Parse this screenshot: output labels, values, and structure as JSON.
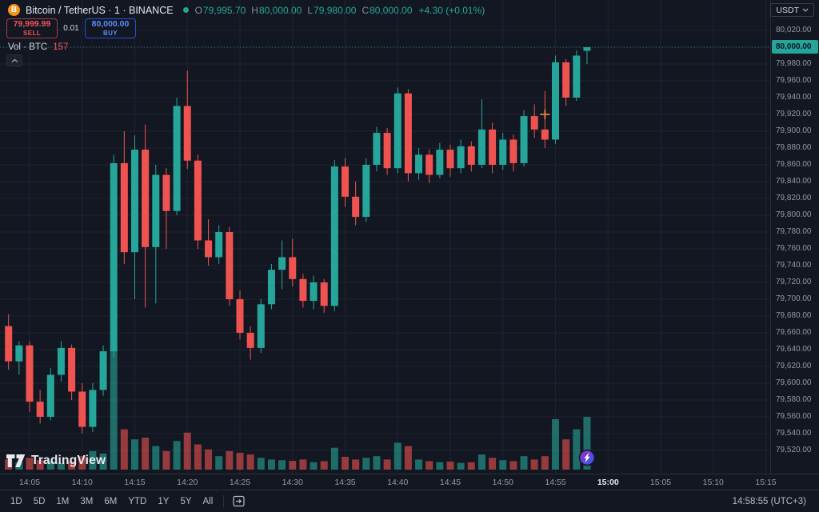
{
  "header": {
    "symbol": "Bitcoin / TetherUS · 1 · BINANCE",
    "ohlc": {
      "o_label": "O",
      "o": "79,995.70",
      "h_label": "H",
      "h": "80,000.00",
      "l_label": "L",
      "l": "79,980.00",
      "c_label": "C",
      "c": "80,000.00",
      "change": "+4.30 (+0.01%)"
    },
    "currency": "USDT"
  },
  "trade": {
    "sell_price": "79,999.99",
    "sell_label": "SELL",
    "spread": "0.01",
    "buy_price": "80,000.00",
    "buy_label": "BUY"
  },
  "indicator": {
    "label": "Vol · BTC",
    "value": "157"
  },
  "watermark": "TradingView",
  "price_axis": {
    "highlight": "80,000.00",
    "labels": [
      "80,020.00",
      "80,000.00",
      "79,980.00",
      "79,960.00",
      "79,940.00",
      "79,920.00",
      "79,900.00",
      "79,880.00",
      "79,860.00",
      "79,840.00",
      "79,820.00",
      "79,800.00",
      "79,780.00",
      "79,760.00",
      "79,740.00",
      "79,720.00",
      "79,700.00",
      "79,680.00",
      "79,660.00",
      "79,640.00",
      "79,620.00",
      "79,600.00",
      "79,580.00",
      "79,560.00",
      "79,540.00",
      "79,520.00"
    ]
  },
  "time_axis": {
    "bold": "15:00",
    "labels": [
      "14:05",
      "14:10",
      "14:15",
      "14:20",
      "14:25",
      "14:30",
      "14:35",
      "14:40",
      "14:45",
      "14:50",
      "14:55",
      "15:00",
      "15:05",
      "15:10",
      "15:15"
    ]
  },
  "toolbar": {
    "ranges": [
      "1D",
      "5D",
      "1M",
      "3M",
      "6M",
      "YTD",
      "1Y",
      "5Y",
      "All"
    ],
    "clock": "14:58:55 (UTC+3)"
  },
  "chart_data": {
    "type": "candlestick",
    "title": "Bitcoin / TetherUS · 1 · BINANCE",
    "interval_minutes": 1,
    "ylim": [
      79510,
      80030
    ],
    "grid": true,
    "current_price": 80000.0,
    "colors": {
      "up": "#26a69a",
      "down": "#ef5350",
      "grid": "#1f2331",
      "badge_bg": "#26a69a",
      "marker": "#ff8b43"
    },
    "columns": [
      "time",
      "open",
      "high",
      "low",
      "close",
      "volume"
    ],
    "candles": [
      [
        "14:03",
        79668,
        79682,
        79616,
        79626,
        30
      ],
      [
        "14:04",
        79626,
        79650,
        79610,
        79645,
        22
      ],
      [
        "14:05",
        79645,
        79650,
        79566,
        79578,
        35
      ],
      [
        "14:06",
        79578,
        79592,
        79552,
        79560,
        28
      ],
      [
        "14:07",
        79560,
        79618,
        79556,
        79610,
        26
      ],
      [
        "14:08",
        79610,
        79650,
        79602,
        79642,
        20
      ],
      [
        "14:09",
        79642,
        79646,
        79580,
        79590,
        24
      ],
      [
        "14:10",
        79590,
        79600,
        79540,
        79548,
        40
      ],
      [
        "14:11",
        79548,
        79600,
        79542,
        79592,
        55
      ],
      [
        "14:12",
        79592,
        79645,
        79585,
        79638,
        48
      ],
      [
        "14:13",
        79638,
        79872,
        79630,
        79862,
        360
      ],
      [
        "14:14",
        79862,
        79900,
        79742,
        79756,
        120
      ],
      [
        "14:15",
        79756,
        79895,
        79700,
        79878,
        90
      ],
      [
        "14:16",
        79878,
        79908,
        79690,
        79762,
        95
      ],
      [
        "14:17",
        79762,
        79860,
        79695,
        79848,
        70
      ],
      [
        "14:18",
        79848,
        79856,
        79760,
        79805,
        55
      ],
      [
        "14:19",
        79805,
        79940,
        79800,
        79930,
        85
      ],
      [
        "14:20",
        79930,
        79972,
        79855,
        79865,
        110
      ],
      [
        "14:21",
        79865,
        79872,
        79760,
        79770,
        75
      ],
      [
        "14:22",
        79770,
        79795,
        79740,
        79750,
        60
      ],
      [
        "14:23",
        79750,
        79788,
        79742,
        79780,
        40
      ],
      [
        "14:24",
        79780,
        79786,
        79692,
        79700,
        55
      ],
      [
        "14:25",
        79700,
        79710,
        79652,
        79660,
        50
      ],
      [
        "14:26",
        79660,
        79668,
        79628,
        79642,
        45
      ],
      [
        "14:27",
        79642,
        79700,
        79636,
        79694,
        35
      ],
      [
        "14:28",
        79694,
        79742,
        79688,
        79735,
        30
      ],
      [
        "14:29",
        79735,
        79770,
        79712,
        79750,
        28
      ],
      [
        "14:30",
        79750,
        79772,
        79715,
        79724,
        26
      ],
      [
        "14:31",
        79724,
        79730,
        79690,
        79698,
        30
      ],
      [
        "14:32",
        79698,
        79728,
        79688,
        79720,
        22
      ],
      [
        "14:33",
        79720,
        79724,
        79684,
        79692,
        25
      ],
      [
        "14:34",
        79692,
        79866,
        79686,
        79858,
        65
      ],
      [
        "14:35",
        79858,
        79868,
        79810,
        79822,
        38
      ],
      [
        "14:36",
        79822,
        79840,
        79788,
        79798,
        30
      ],
      [
        "14:37",
        79798,
        79868,
        79792,
        79860,
        35
      ],
      [
        "14:38",
        79860,
        79905,
        79852,
        79898,
        40
      ],
      [
        "14:39",
        79898,
        79904,
        79848,
        79856,
        30
      ],
      [
        "14:40",
        79856,
        79952,
        79850,
        79945,
        80
      ],
      [
        "14:41",
        79945,
        79950,
        79840,
        79850,
        70
      ],
      [
        "14:42",
        79850,
        79880,
        79842,
        79872,
        30
      ],
      [
        "14:43",
        79872,
        79878,
        79838,
        79848,
        25
      ],
      [
        "14:44",
        79848,
        79886,
        79844,
        79878,
        22
      ],
      [
        "14:45",
        79878,
        79884,
        79846,
        79856,
        24
      ],
      [
        "14:46",
        79856,
        79890,
        79850,
        79882,
        20
      ],
      [
        "14:47",
        79882,
        79888,
        79852,
        79860,
        22
      ],
      [
        "14:48",
        79860,
        79938,
        79856,
        79902,
        45
      ],
      [
        "14:49",
        79902,
        79910,
        79850,
        79860,
        35
      ],
      [
        "14:50",
        79860,
        79898,
        79854,
        79890,
        28
      ],
      [
        "14:51",
        79890,
        79896,
        79852,
        79862,
        25
      ],
      [
        "14:52",
        79862,
        79925,
        79858,
        79918,
        40
      ],
      [
        "14:53",
        79918,
        79932,
        79892,
        79902,
        30
      ],
      [
        "14:54",
        79902,
        79948,
        79880,
        79890,
        40
      ],
      [
        "14:55",
        79890,
        79990,
        79885,
        79982,
        150
      ],
      [
        "14:56",
        79982,
        79986,
        79930,
        79940,
        90
      ],
      [
        "14:57",
        79940,
        79996,
        79936,
        79990,
        120
      ],
      [
        "14:58",
        79995.7,
        80000,
        79980,
        80000,
        157
      ]
    ],
    "order_marker": {
      "time": "14:54",
      "price": 79920
    },
    "quick_trade_marker": {
      "time": "14:58"
    }
  }
}
